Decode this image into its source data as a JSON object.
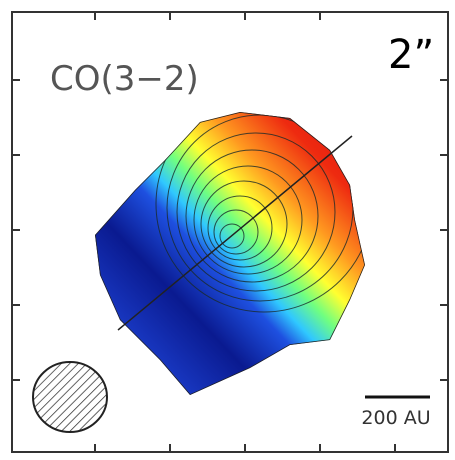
{
  "label": "CO(3−2)",
  "scale_label": "2”",
  "scale_bar_label": "200 AU"
}
